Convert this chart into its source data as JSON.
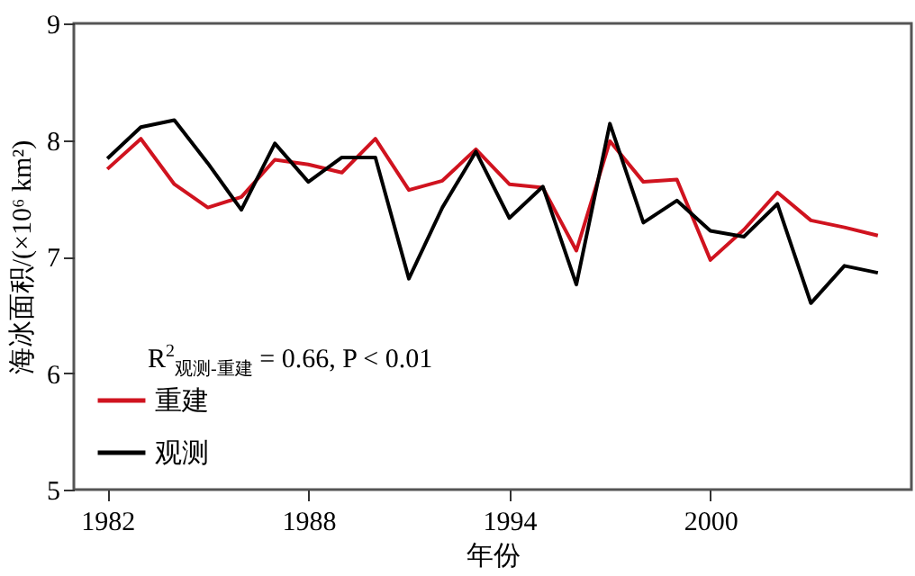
{
  "chart_data": {
    "type": "line",
    "xlabel": "年份",
    "ylabel": "海冰面积/(×10⁶ km²)",
    "x": [
      1982,
      1983,
      1984,
      1985,
      1986,
      1987,
      1988,
      1989,
      1990,
      1991,
      1992,
      1993,
      1994,
      1995,
      1996,
      1997,
      1998,
      1999,
      2000,
      2001,
      2002,
      2003,
      2004,
      2005
    ],
    "series": [
      {
        "name": "重建",
        "color": "#d0131f",
        "values": [
          7.75,
          8.01,
          7.62,
          7.42,
          7.51,
          7.83,
          7.79,
          7.72,
          8.01,
          7.57,
          7.65,
          7.92,
          7.62,
          7.59,
          7.05,
          7.99,
          7.64,
          7.66,
          6.97,
          7.23,
          7.55,
          7.31,
          7.25,
          7.18
        ]
      },
      {
        "name": "观测",
        "color": "#000000",
        "values": [
          7.84,
          8.11,
          8.17,
          7.8,
          7.4,
          7.97,
          7.64,
          7.85,
          7.85,
          6.81,
          7.42,
          7.9,
          7.33,
          7.6,
          6.76,
          8.14,
          7.29,
          7.48,
          7.22,
          7.17,
          7.45,
          6.6,
          6.92,
          6.86
        ]
      }
    ],
    "xlim": [
      1981,
      2006
    ],
    "xticks": [
      1982,
      1988,
      1994,
      2000
    ],
    "ylim": [
      5,
      9
    ],
    "yticks": [
      5,
      6,
      7,
      8,
      9
    ],
    "grid": false,
    "legend": "bottom left",
    "marker": "none",
    "line_style": "solid",
    "annotations": [
      "R$^{2}$$_{观测-重建}$ = 0.66, P < 0.01"
    ]
  }
}
